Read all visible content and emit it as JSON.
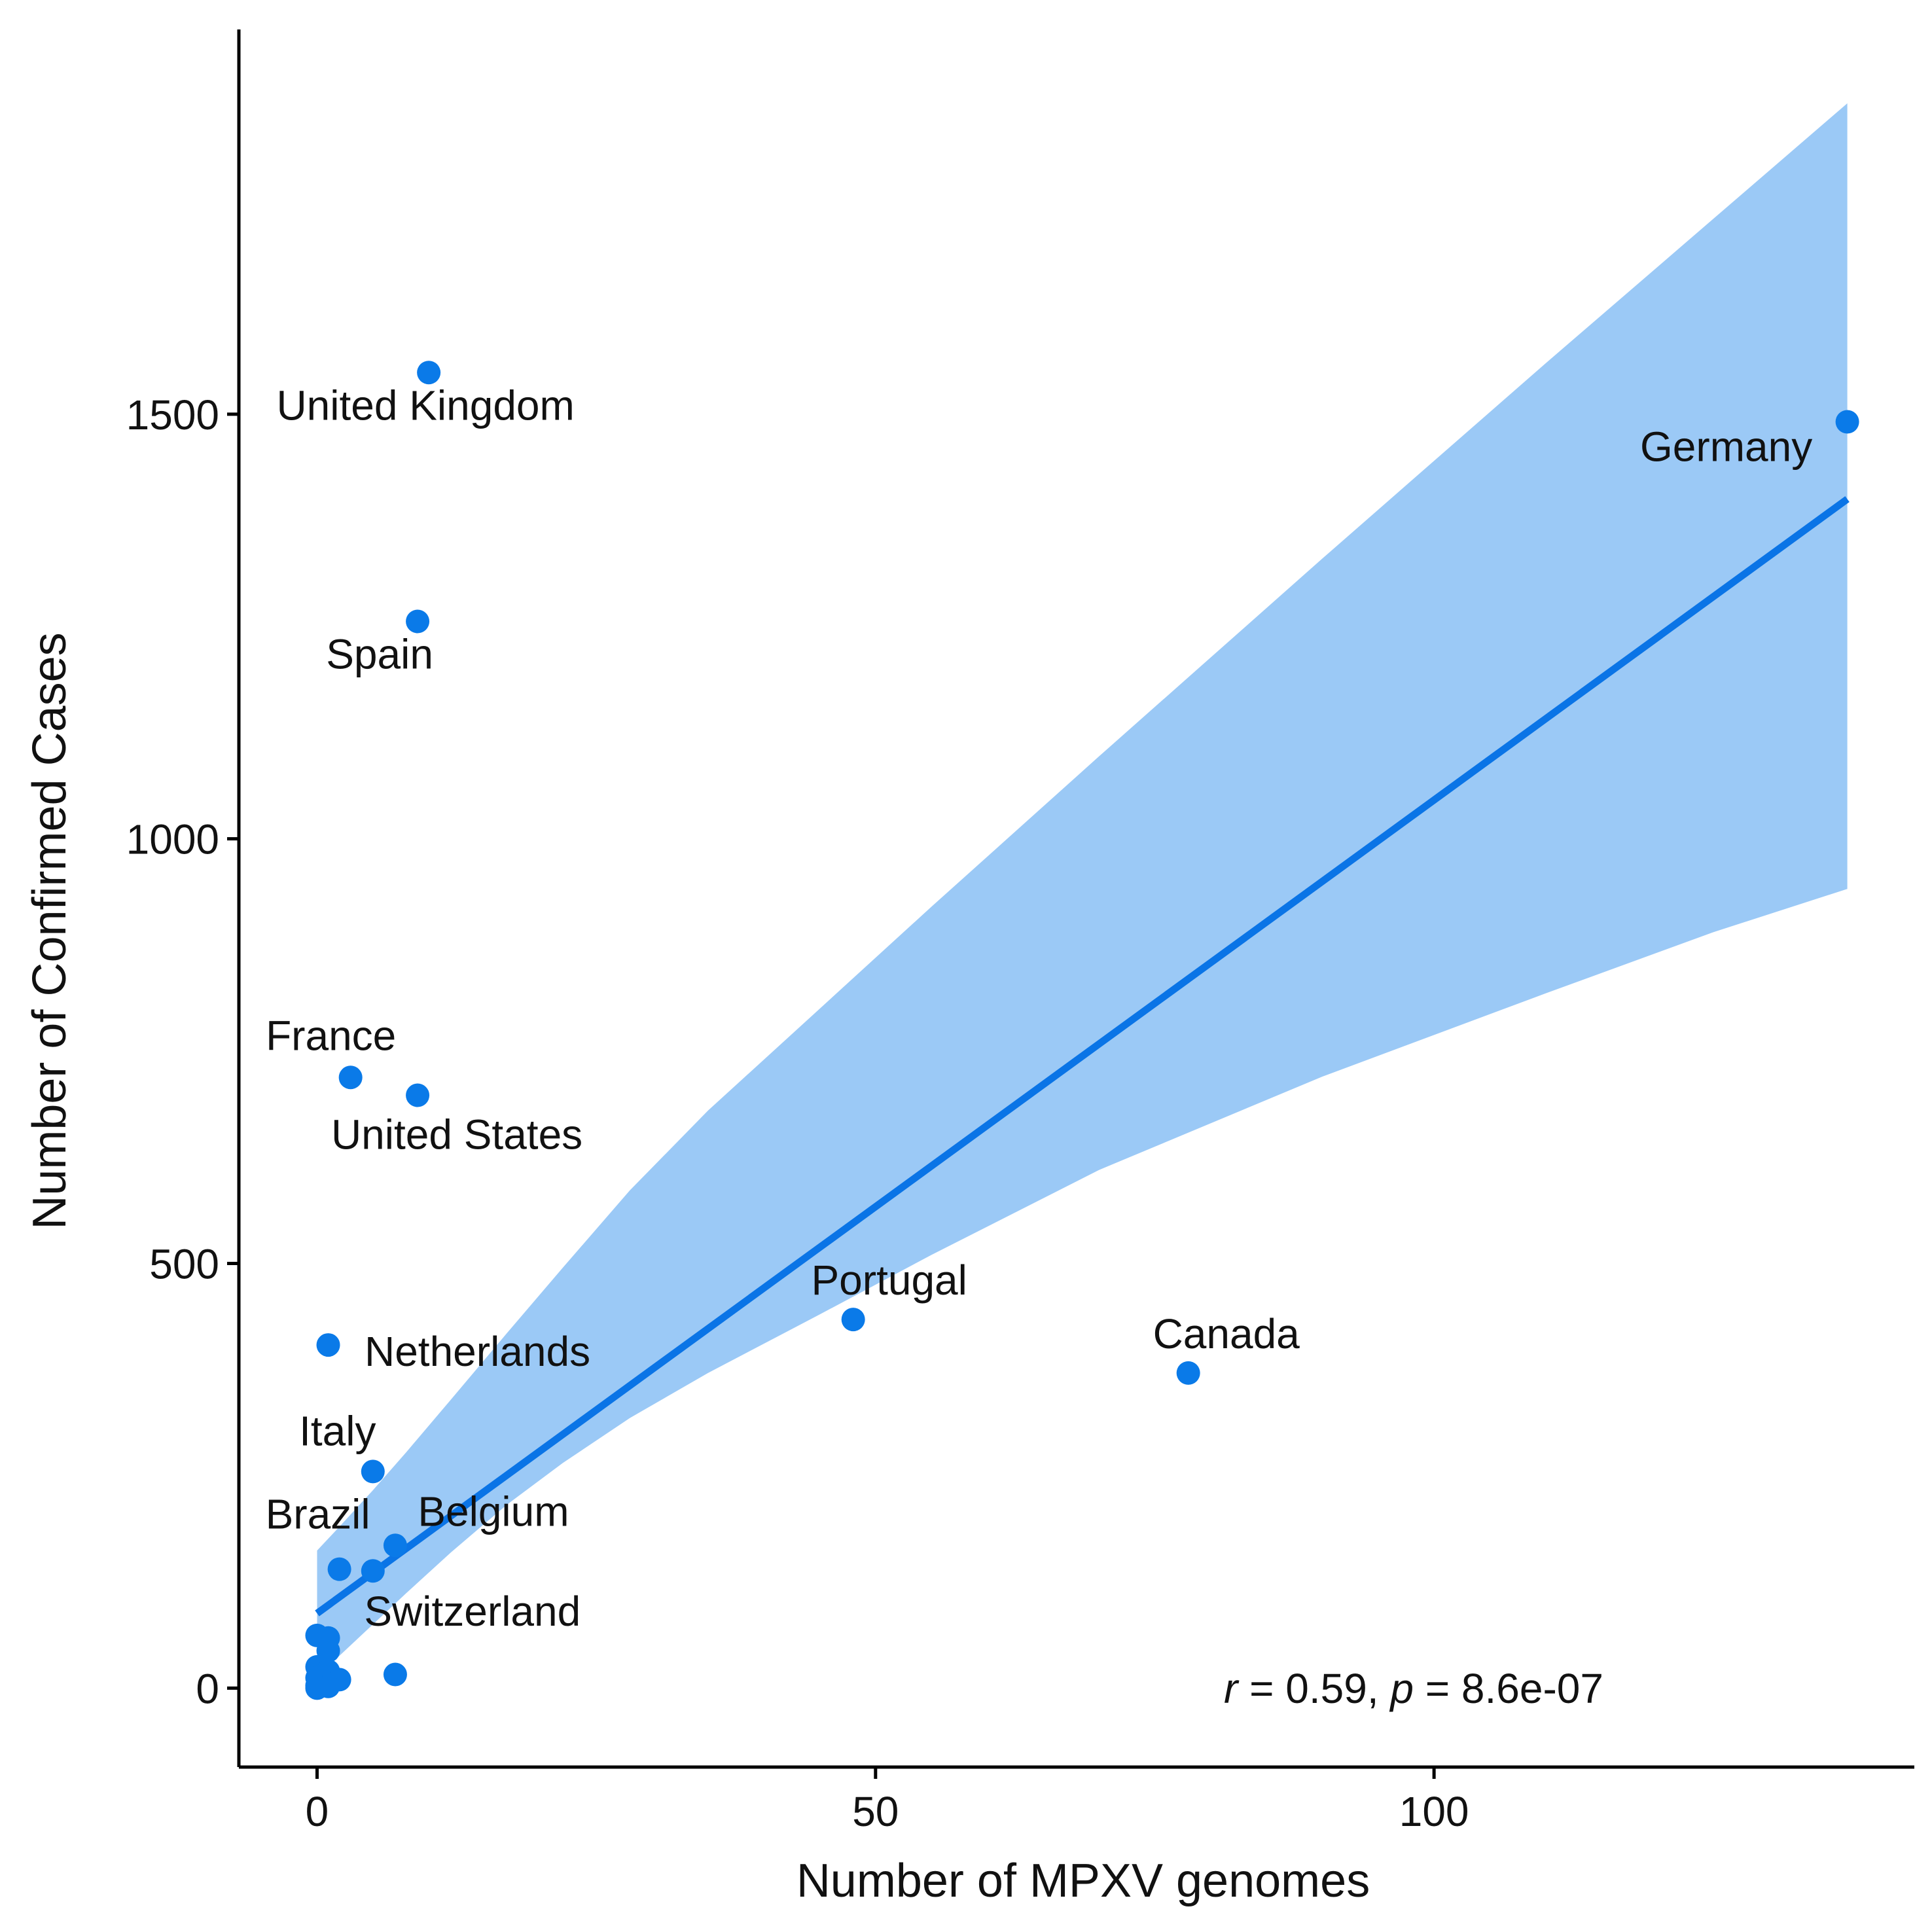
{
  "chart_data": {
    "type": "scatter",
    "xlabel": "Number of MPXV genomes",
    "ylabel": "Number of Confirmed Cases",
    "xlim": [
      -7,
      143
    ],
    "ylim": [
      -93,
      1953
    ],
    "x_ticks": [
      0,
      50,
      100
    ],
    "y_ticks": [
      0,
      500,
      1000,
      1500
    ],
    "x_tick_labels": [
      "0",
      "50",
      "100"
    ],
    "y_tick_labels": [
      "0",
      "500",
      "1000",
      "1500"
    ],
    "grid": false,
    "legend": "none",
    "colors": {
      "points": "#0a7ae8",
      "line": "#0a74e6",
      "ribbon": "#9bc9f6",
      "axis": "#000000",
      "text": "#111111"
    },
    "points": [
      {
        "x": 10,
        "y": 1549,
        "label": "United Kingdom"
      },
      {
        "x": 137,
        "y": 1491,
        "label": "Germany"
      },
      {
        "x": 9,
        "y": 1256,
        "label": "Spain"
      },
      {
        "x": 3,
        "y": 719,
        "label": "France"
      },
      {
        "x": 9,
        "y": 698,
        "label": "United States"
      },
      {
        "x": 48,
        "y": 434,
        "label": "Portugal"
      },
      {
        "x": 78,
        "y": 371,
        "label": "Canada"
      },
      {
        "x": 1,
        "y": 404,
        "label": "Netherlands"
      },
      {
        "x": 5,
        "y": 255,
        "label": "Italy"
      },
      {
        "x": 7,
        "y": 168,
        "label": "Belgium"
      },
      {
        "x": 2,
        "y": 140,
        "label": "Brazil"
      },
      {
        "x": 5,
        "y": 138,
        "label": "Switzerland"
      },
      {
        "x": 0,
        "y": 62,
        "label": ""
      },
      {
        "x": 1,
        "y": 59,
        "label": ""
      },
      {
        "x": 1,
        "y": 44,
        "label": ""
      },
      {
        "x": 7,
        "y": 16,
        "label": ""
      },
      {
        "x": 0,
        "y": 25,
        "label": ""
      },
      {
        "x": 0,
        "y": 12,
        "label": ""
      },
      {
        "x": 1,
        "y": 20,
        "label": ""
      },
      {
        "x": 2,
        "y": 10,
        "label": ""
      },
      {
        "x": 0,
        "y": 3,
        "label": ""
      },
      {
        "x": 1,
        "y": 2,
        "label": ""
      },
      {
        "x": 0,
        "y": 0,
        "label": ""
      }
    ],
    "regression": {
      "x": [
        0,
        137
      ],
      "y": [
        88,
        1400
      ]
    },
    "confidence_band": {
      "x": [
        0,
        2,
        5,
        8,
        12,
        17,
        22,
        28,
        35,
        45,
        55,
        70,
        90,
        110,
        125,
        137
      ],
      "upper": [
        162,
        190,
        233,
        278,
        340,
        418,
        495,
        586,
        680,
        800,
        920,
        1097,
        1330,
        1560,
        1730,
        1866
      ],
      "lower": [
        15,
        38,
        75,
        112,
        160,
        216,
        265,
        318,
        371,
        440,
        510,
        610,
        720,
        818,
        890,
        941
      ]
    },
    "annotation": {
      "r_symbol": "r",
      "r_text": " = 0.59, ",
      "p_symbol": "p",
      "p_text": " = 8.6e-07"
    }
  }
}
